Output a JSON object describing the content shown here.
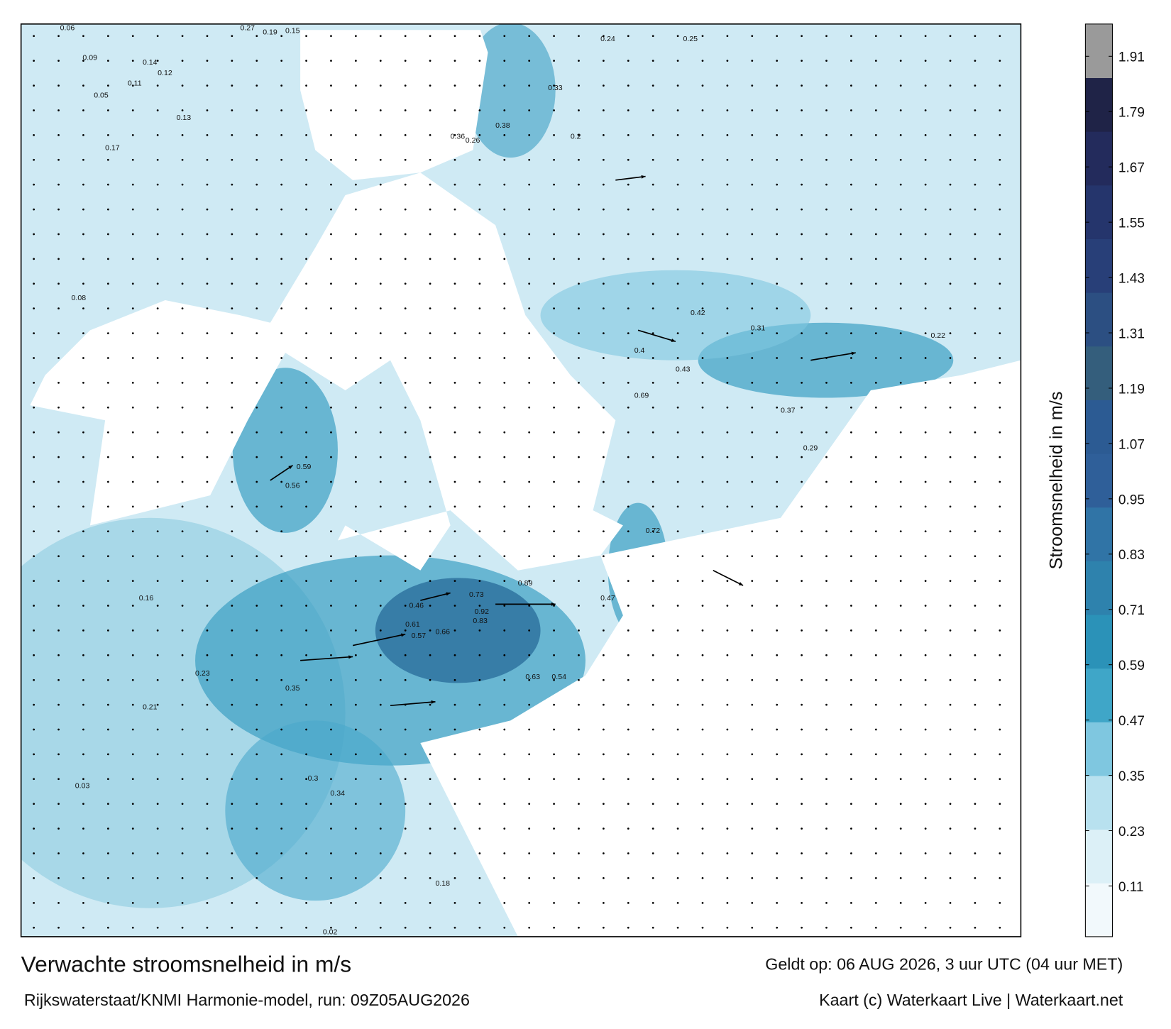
{
  "map": {
    "title": "Verwachte stroomsnelheid in m/s",
    "subtitle": "Rijkswaterstaat/KNMI Harmonie-model, run: 09Z05AUG2026",
    "valid_time": "Geldt op: 06 AUG 2026, 3 uur UTC (04 uur MET)",
    "credit": "Kaart (c) Waterkaart Live | Waterkaart.net",
    "labels": [
      "0.06",
      "0.27",
      "0.19",
      "0.15",
      "0.09",
      "0.14",
      "0.12",
      "0.11",
      "0.05",
      "0.13",
      "0.36",
      "0.26",
      "0.24",
      "0.25",
      "0.23",
      "0.21",
      "0.08",
      "0.17",
      "0.33",
      "0.38",
      "0.46",
      "0.61",
      "0.69",
      "0.56",
      "0.59",
      "0.57",
      "0.66",
      "0.73",
      "0.83",
      "0.92",
      "0.89",
      "0.63",
      "0.54",
      "0.37",
      "0.29",
      "0.22",
      "0.03",
      "0.02",
      "0.47",
      "0.18",
      "0.16",
      "0.43",
      "0.72",
      "0.34",
      "0.4",
      "0.3",
      "0.42",
      "0.31",
      "0.35",
      "0.2"
    ],
    "colorbar": {
      "label": "Stroomsnelheid in m/s",
      "lim": [
        0,
        1.98
      ],
      "ticks": [
        0.11,
        0.23,
        0.35,
        0.47,
        0.59,
        0.71,
        0.83,
        0.95,
        1.07,
        1.19,
        1.31,
        1.43,
        1.55,
        1.67,
        1.79,
        1.91
      ],
      "colors": [
        "#f2f9fc",
        "#dcf0f7",
        "#b8e1ef",
        "#7fc7e0",
        "#3fa6c8",
        "#2b92b8",
        "#2e82ad",
        "#3074a6",
        "#2f5f99",
        "#2c5b93",
        "#345e7c",
        "#2c4f82",
        "#283f78",
        "#25356c",
        "#232b5c",
        "#1f2347",
        "#9a9a9a"
      ]
    }
  }
}
